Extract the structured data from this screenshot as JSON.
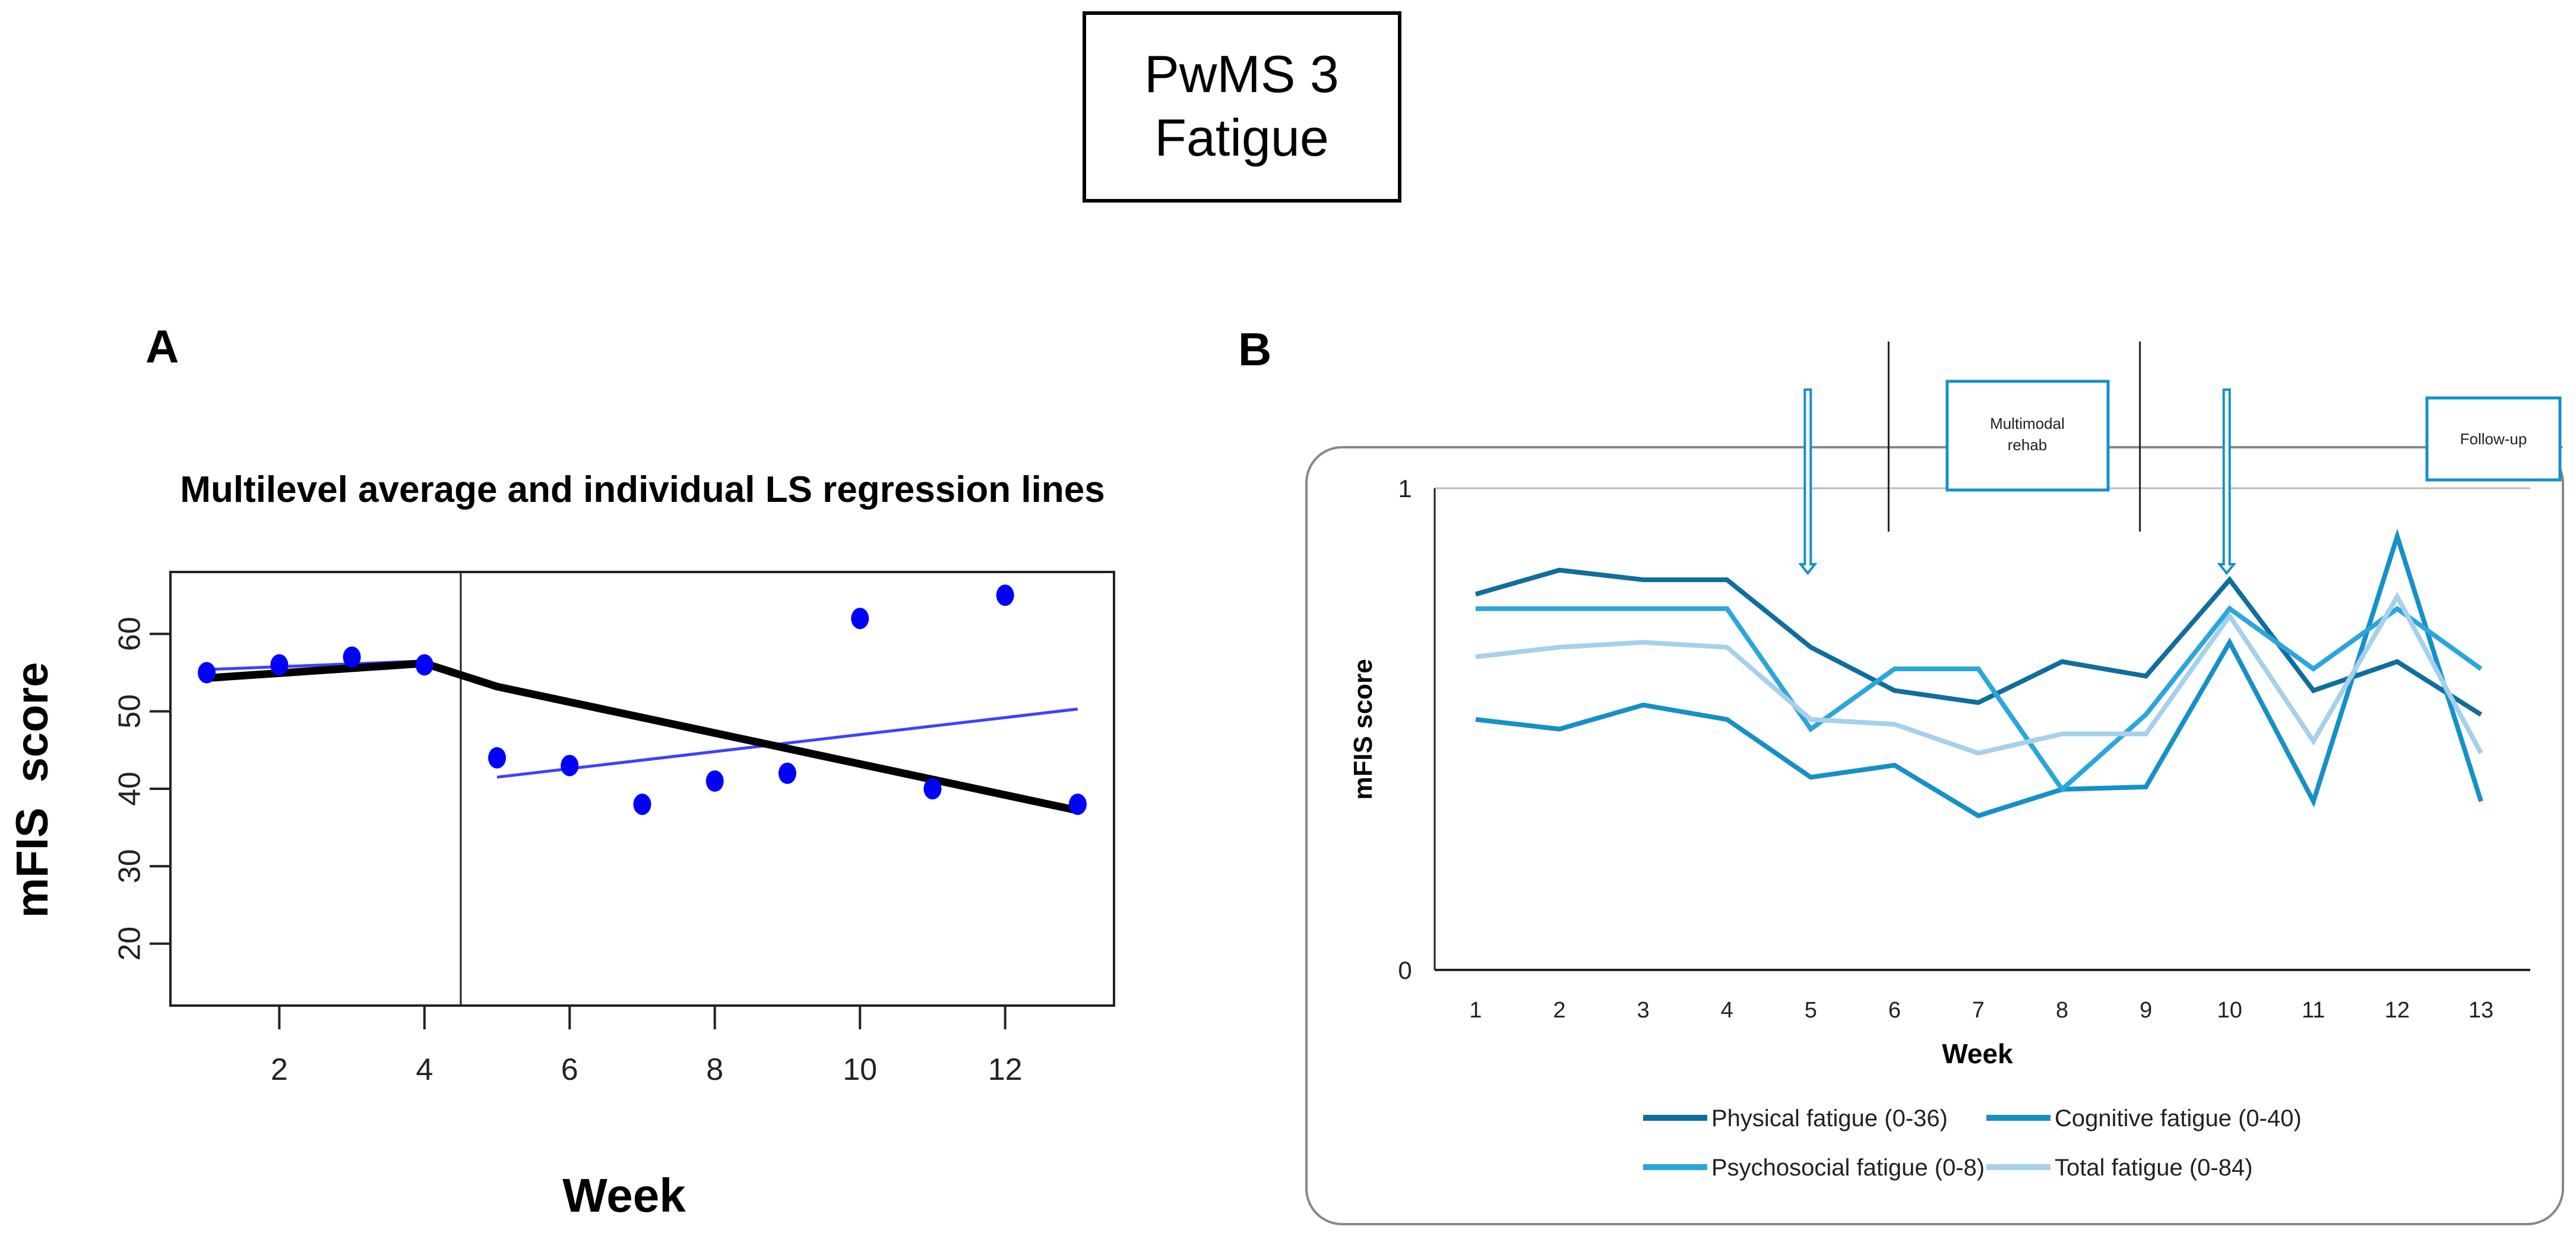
{
  "header": {
    "line1": "PwMS 3",
    "line2": "Fatigue"
  },
  "chart_data": [
    {
      "panel": "A",
      "type": "scatter",
      "title": "Multilevel average and individual LS regression lines",
      "xlabel": "Week",
      "ylabel": "mFIS  score",
      "xlim": [
        0.5,
        13.5
      ],
      "ylim": [
        12,
        68
      ],
      "xticks": [
        2,
        4,
        6,
        8,
        10,
        12
      ],
      "yticks": [
        20,
        30,
        40,
        50,
        60
      ],
      "phase_boundary_x": 4.5,
      "points": {
        "x": [
          1,
          2,
          3,
          4,
          5,
          6,
          7,
          8,
          9,
          10,
          11,
          12,
          13
        ],
        "y": [
          55,
          56,
          57,
          56,
          44,
          43,
          38,
          41,
          42,
          62,
          40,
          65,
          38
        ],
        "color": "#0000ff"
      },
      "individual_lines": [
        {
          "x": [
            1,
            4
          ],
          "y": [
            55.4,
            56.5
          ],
          "color": "#4040ff"
        },
        {
          "x": [
            5,
            13
          ],
          "y": [
            41.5,
            50.3
          ],
          "color": "#4040ff"
        }
      ],
      "average_line": {
        "x": [
          1,
          4,
          5,
          13
        ],
        "y": [
          54.3,
          56.2,
          53.2,
          37.2
        ],
        "color": "#000000"
      }
    },
    {
      "panel": "B",
      "type": "line",
      "xlabel": "Week",
      "ylabel": "mFIS score",
      "ylim": [
        0,
        1
      ],
      "yticks": [
        0,
        1
      ],
      "x": [
        1,
        2,
        3,
        4,
        5,
        6,
        7,
        8,
        9,
        10,
        11,
        12,
        13
      ],
      "series": [
        {
          "name": "Physical fatigue (0-36)",
          "color": "#0f6e9e",
          "values": [
            0.78,
            0.83,
            0.81,
            0.81,
            0.67,
            0.58,
            0.555,
            0.64,
            0.61,
            0.81,
            0.58,
            0.64,
            0.53
          ]
        },
        {
          "name": "Cognitive fatigue (0-40)",
          "color": "#1690c8",
          "values": [
            0.52,
            0.5,
            0.55,
            0.52,
            0.4,
            0.425,
            0.32,
            0.375,
            0.38,
            0.68,
            0.35,
            0.9,
            0.35
          ]
        },
        {
          "name": "Psychosocial fatigue (0-8)",
          "color": "#2aa6dc",
          "values": [
            0.75,
            0.75,
            0.75,
            0.75,
            0.5,
            0.625,
            0.625,
            0.375,
            0.53,
            0.75,
            0.625,
            0.75,
            0.625
          ]
        },
        {
          "name": "Total fatigue (0-84)",
          "color": "#a6d0ec",
          "values": [
            0.65,
            0.67,
            0.68,
            0.67,
            0.52,
            0.51,
            0.45,
            0.49,
            0.49,
            0.735,
            0.475,
            0.775,
            0.45
          ]
        }
      ],
      "annotations": {
        "phase_lines_x": [
          6,
          9
        ],
        "arrows_x": [
          5,
          10
        ],
        "rehab_box": "Multimodal rehab",
        "rehab_line1": "Multimodal",
        "rehab_line2": "rehab",
        "followup_box": "Follow-up"
      },
      "legend": "bottom"
    }
  ],
  "labels": {
    "panel_a": "A",
    "panel_b": "B"
  }
}
